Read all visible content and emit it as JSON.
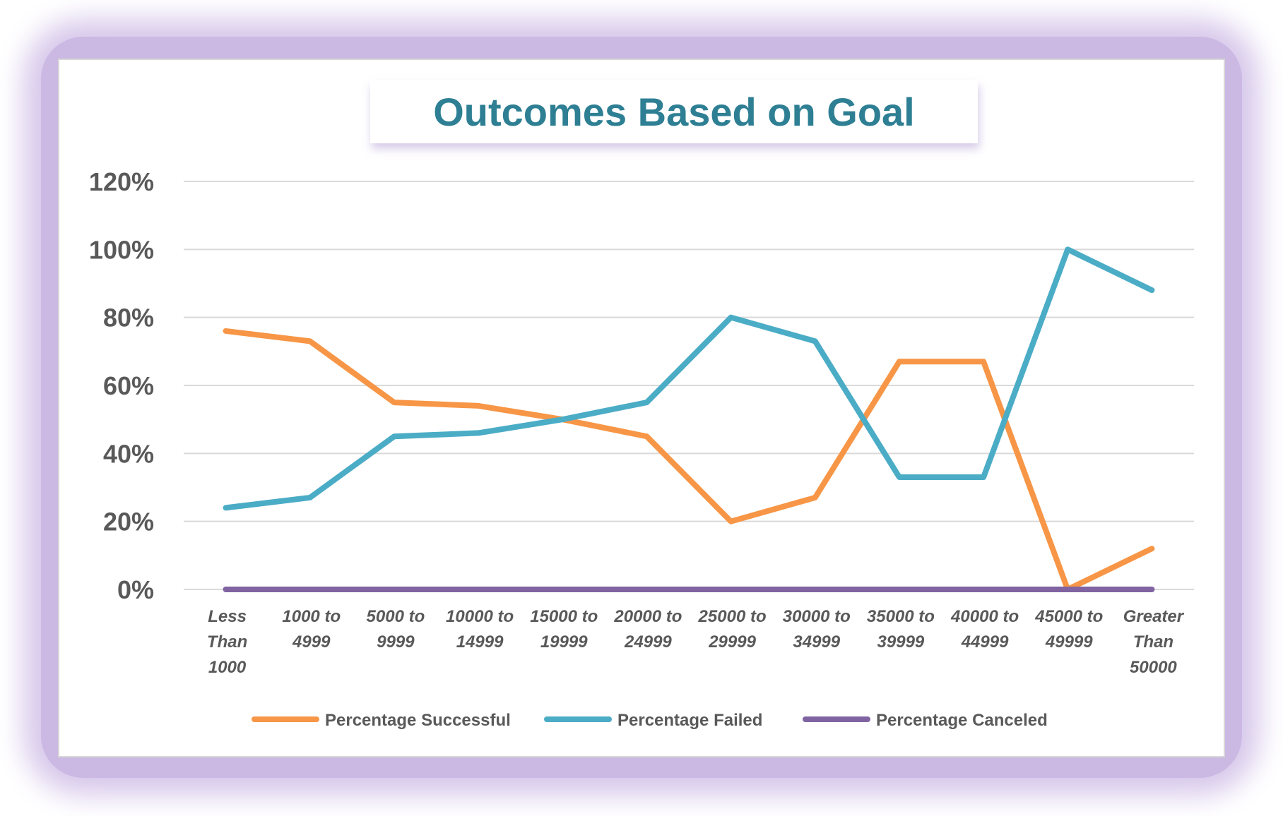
{
  "chart_data": {
    "type": "line",
    "title": "Outcomes Based on Goal",
    "xlabel": "",
    "ylabel": "",
    "ylim": [
      0,
      1.2
    ],
    "y_ticks": [
      "0%",
      "20%",
      "40%",
      "60%",
      "80%",
      "100%",
      "120%"
    ],
    "y_tick_values": [
      0,
      0.2,
      0.4,
      0.6,
      0.8,
      1.0,
      1.2
    ],
    "categories": [
      [
        "Less",
        "Than",
        "1000"
      ],
      [
        "1000 to",
        "4999"
      ],
      [
        "5000 to",
        "9999"
      ],
      [
        "10000 to",
        "14999"
      ],
      [
        "15000 to",
        "19999"
      ],
      [
        "20000 to",
        "24999"
      ],
      [
        "25000 to",
        "29999"
      ],
      [
        "30000 to",
        "34999"
      ],
      [
        "35000 to",
        "39999"
      ],
      [
        "40000 to",
        "44999"
      ],
      [
        "45000 to",
        "49999"
      ],
      [
        "Greater",
        "Than",
        "50000"
      ]
    ],
    "series": [
      {
        "name": "Percentage Successful",
        "color": "#f79646",
        "values": [
          0.76,
          0.73,
          0.55,
          0.54,
          0.5,
          0.45,
          0.2,
          0.27,
          0.67,
          0.67,
          0.0,
          0.12
        ]
      },
      {
        "name": "Percentage Failed",
        "color": "#4bacc6",
        "values": [
          0.24,
          0.27,
          0.45,
          0.46,
          0.5,
          0.55,
          0.8,
          0.73,
          0.33,
          0.33,
          1.0,
          0.88
        ]
      },
      {
        "name": "Percentage Canceled",
        "color": "#8064a2",
        "values": [
          0,
          0,
          0,
          0,
          0,
          0,
          0,
          0,
          0,
          0,
          0,
          0
        ]
      }
    ],
    "grid": true,
    "legend_position": "bottom"
  },
  "colors": {
    "title": "#2e7f93",
    "frame_glow": "#cbb8e3",
    "gridline": "#d9d9d9",
    "tick_text": "#595959"
  }
}
